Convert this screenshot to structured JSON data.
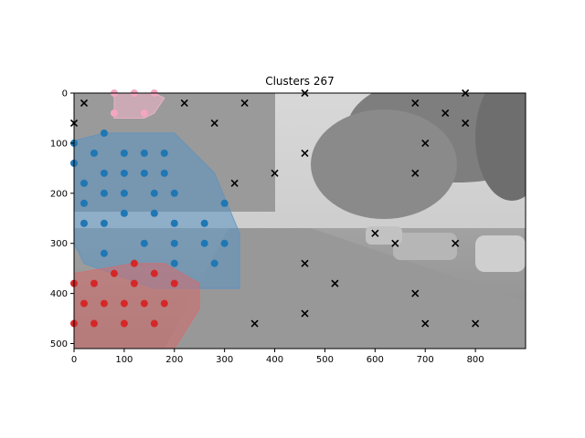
{
  "chart_data": {
    "type": "scatter",
    "title": "Clusters 267",
    "xlabel": "",
    "ylabel": "",
    "xlim": [
      0,
      900
    ],
    "ylim": [
      510,
      0
    ],
    "y_inverted": true,
    "xticks": [
      0,
      100,
      200,
      300,
      400,
      500,
      600,
      700,
      800
    ],
    "yticks": [
      0,
      100,
      200,
      300,
      400,
      500
    ],
    "grid": false,
    "legend": "none",
    "background": "grayscale street photograph (road with parked cars and trees)",
    "series": [
      {
        "kind": "cluster",
        "color": "#f4a6c0",
        "hull_color": "#f4b6cc",
        "points": [
          [
            80,
            0
          ],
          [
            120,
            0
          ],
          [
            160,
            0
          ],
          [
            80,
            40
          ],
          [
            140,
            40
          ]
        ],
        "hull": [
          [
            80,
            0
          ],
          [
            160,
            0
          ],
          [
            180,
            10
          ],
          [
            160,
            40
          ],
          [
            140,
            50
          ],
          [
            80,
            50
          ]
        ]
      },
      {
        "kind": "cluster",
        "color": "#1f77b4",
        "hull_color": "#5b93c2",
        "points": [
          [
            0,
            100
          ],
          [
            60,
            80
          ],
          [
            0,
            140
          ],
          [
            40,
            120
          ],
          [
            100,
            120
          ],
          [
            140,
            120
          ],
          [
            180,
            120
          ],
          [
            20,
            180
          ],
          [
            60,
            160
          ],
          [
            100,
            160
          ],
          [
            140,
            160
          ],
          [
            180,
            160
          ],
          [
            20,
            220
          ],
          [
            60,
            200
          ],
          [
            100,
            200
          ],
          [
            160,
            200
          ],
          [
            200,
            200
          ],
          [
            300,
            220
          ],
          [
            20,
            260
          ],
          [
            60,
            260
          ],
          [
            100,
            240
          ],
          [
            160,
            240
          ],
          [
            200,
            260
          ],
          [
            260,
            260
          ],
          [
            60,
            320
          ],
          [
            140,
            300
          ],
          [
            200,
            300
          ],
          [
            260,
            300
          ],
          [
            300,
            300
          ],
          [
            200,
            340
          ],
          [
            280,
            340
          ]
        ],
        "hull": [
          [
            0,
            95
          ],
          [
            60,
            80
          ],
          [
            200,
            80
          ],
          [
            280,
            160
          ],
          [
            330,
            280
          ],
          [
            330,
            390
          ],
          [
            160,
            390
          ],
          [
            20,
            340
          ],
          [
            0,
            300
          ]
        ]
      },
      {
        "kind": "cluster",
        "color": "#d62728",
        "hull_color": "#d66b6b",
        "points": [
          [
            120,
            340
          ],
          [
            80,
            360
          ],
          [
            160,
            360
          ],
          [
            0,
            380
          ],
          [
            40,
            380
          ],
          [
            120,
            380
          ],
          [
            200,
            380
          ],
          [
            20,
            420
          ],
          [
            60,
            420
          ],
          [
            100,
            420
          ],
          [
            140,
            420
          ],
          [
            180,
            420
          ],
          [
            0,
            460
          ],
          [
            40,
            460
          ],
          [
            100,
            460
          ],
          [
            160,
            460
          ]
        ],
        "hull": [
          [
            0,
            360
          ],
          [
            120,
            340
          ],
          [
            180,
            340
          ],
          [
            250,
            380
          ],
          [
            250,
            430
          ],
          [
            200,
            510
          ],
          [
            0,
            510
          ]
        ]
      },
      {
        "kind": "noise",
        "marker": "x",
        "color": "#000000",
        "points": [
          [
            0,
            60
          ],
          [
            20,
            20
          ],
          [
            220,
            20
          ],
          [
            280,
            60
          ],
          [
            340,
            20
          ],
          [
            320,
            180
          ],
          [
            400,
            160
          ],
          [
            460,
            0
          ],
          [
            460,
            120
          ],
          [
            460,
            340
          ],
          [
            460,
            440
          ],
          [
            360,
            460
          ],
          [
            520,
            380
          ],
          [
            600,
            280
          ],
          [
            640,
            300
          ],
          [
            680,
            20
          ],
          [
            680,
            160
          ],
          [
            700,
            100
          ],
          [
            740,
            40
          ],
          [
            780,
            0
          ],
          [
            780,
            60
          ],
          [
            760,
            300
          ],
          [
            680,
            400
          ],
          [
            700,
            460
          ],
          [
            800,
            460
          ]
        ]
      }
    ]
  }
}
